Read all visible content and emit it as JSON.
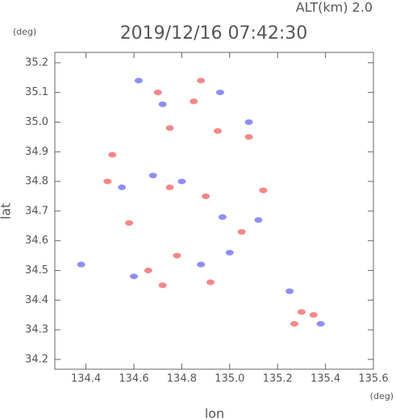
{
  "chart_data": {
    "type": "scatter",
    "annotation": "ALT(km) 2.0",
    "title": "2019/12/16 07:42:30",
    "y_unit": "(deg)",
    "x_unit": "(deg)",
    "x_label": "lon",
    "y_label": "lat",
    "xlim": [
      134.27,
      135.6
    ],
    "ylim": [
      34.167,
      35.235
    ],
    "xticks": [
      134.4,
      134.6,
      134.8,
      {
        "value": 135,
        "label": "135.0"
      },
      135.2,
      135.4,
      135.6
    ],
    "yticks": [
      34.2,
      34.3,
      34.4,
      34.5,
      34.6,
      34.7,
      34.8,
      34.9,
      {
        "value": 35,
        "label": "35.0"
      },
      35.1,
      35.2
    ],
    "grid": false,
    "series": [
      {
        "color": "#f06060",
        "x": [
          134.51,
          134.49,
          134.58,
          134.7,
          134.75,
          134.85,
          134.88,
          134.95,
          135.08,
          134.78,
          134.72,
          135.05,
          135.3,
          135.35,
          135.27,
          134.66,
          134.9,
          135.14,
          134.75,
          134.92
        ],
        "y": [
          34.89,
          34.8,
          34.66,
          35.1,
          34.98,
          35.07,
          35.14,
          34.97,
          34.95,
          34.55,
          34.45,
          34.63,
          34.36,
          34.35,
          34.32,
          34.5,
          34.75,
          34.77,
          34.78,
          34.46
        ]
      },
      {
        "color": "#6a6af0",
        "x": [
          134.38,
          134.62,
          134.72,
          134.96,
          135.08,
          134.55,
          134.68,
          134.8,
          134.88,
          134.6,
          135.0,
          135.12,
          135.25,
          135.38,
          134.97
        ],
        "y": [
          34.52,
          35.14,
          35.06,
          35.1,
          35.0,
          34.78,
          34.82,
          34.8,
          34.52,
          34.48,
          34.56,
          34.67,
          34.43,
          34.32,
          34.68
        ]
      }
    ]
  }
}
